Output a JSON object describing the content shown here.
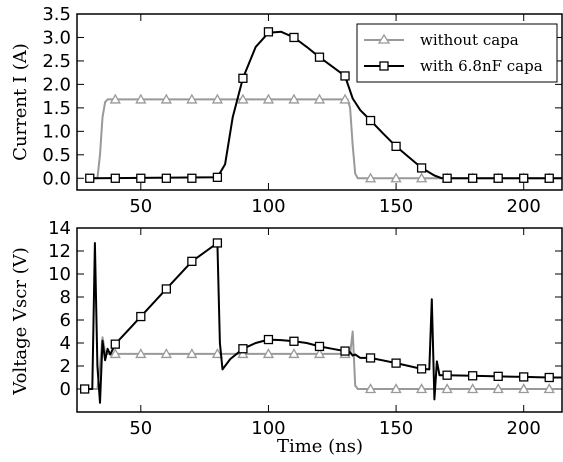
{
  "colors": {
    "without_capa": "#999999",
    "with_capa": "#000000",
    "axes": "#000000",
    "background": "#ffffff"
  },
  "chart_data": [
    {
      "type": "line",
      "ylabel": "Current I (A)",
      "xlim": [
        25,
        215
      ],
      "ylim": [
        -0.25,
        3.5
      ],
      "xticks": [
        50,
        100,
        150,
        200
      ],
      "xtick_labels": [
        "50",
        "100",
        "150",
        "200"
      ],
      "yticks": [
        0.0,
        0.5,
        1.0,
        1.5,
        2.0,
        2.5,
        3.0,
        3.5
      ],
      "ytick_labels": [
        "0.0",
        "0.5",
        "1.0",
        "1.5",
        "2.0",
        "2.5",
        "3.0",
        "3.5"
      ],
      "legend_position": "top-right",
      "series": [
        {
          "name": "without capa",
          "color": "#999999",
          "marker": "triangle",
          "x": [
            30,
            33,
            34,
            35,
            36,
            37,
            38,
            130,
            131,
            132,
            133,
            134,
            135,
            215
          ],
          "y": [
            0,
            0,
            0.5,
            1.3,
            1.62,
            1.68,
            1.68,
            1.68,
            1.68,
            1.5,
            0.7,
            0.1,
            0,
            0
          ],
          "marker_x": [
            40,
            50,
            60,
            70,
            80,
            90,
            100,
            110,
            120,
            130,
            140,
            150,
            160,
            170,
            180,
            190,
            200,
            210
          ],
          "marker_y": [
            1.68,
            1.68,
            1.68,
            1.68,
            1.68,
            1.68,
            1.68,
            1.68,
            1.68,
            1.68,
            0,
            0,
            0,
            0,
            0,
            0,
            0,
            0
          ]
        },
        {
          "name": "with 6.8nF capa",
          "color": "#000000",
          "marker": "square",
          "x": [
            30,
            80,
            83,
            86,
            90,
            95,
            100,
            105,
            110,
            115,
            120,
            125,
            130,
            133,
            136,
            140,
            145,
            150,
            155,
            160,
            165,
            168,
            215
          ],
          "y": [
            0,
            0.02,
            0.3,
            1.3,
            2.13,
            2.8,
            3.1,
            3.12,
            3.0,
            2.8,
            2.58,
            2.38,
            2.18,
            1.7,
            1.45,
            1.23,
            0.95,
            0.68,
            0.45,
            0.22,
            0.06,
            0,
            0
          ],
          "marker_x": [
            30,
            40,
            50,
            60,
            70,
            80,
            90,
            100,
            110,
            120,
            130,
            140,
            150,
            160,
            170,
            180,
            190,
            200,
            210
          ],
          "marker_y": [
            0,
            0,
            0,
            0,
            0,
            0.02,
            2.13,
            3.12,
            3.0,
            2.58,
            2.18,
            1.23,
            0.68,
            0.22,
            0,
            0,
            0,
            0,
            0
          ]
        }
      ]
    },
    {
      "type": "line",
      "xlabel": "Time (ns)",
      "ylabel": "Voltage Vscr (V)",
      "xlim": [
        25,
        215
      ],
      "ylim": [
        -2,
        14
      ],
      "xticks": [
        50,
        100,
        150,
        200
      ],
      "xtick_labels": [
        "50",
        "100",
        "150",
        "200"
      ],
      "yticks": [
        0,
        2,
        4,
        6,
        8,
        10,
        12,
        14
      ],
      "ytick_labels": [
        "0",
        "2",
        "4",
        "6",
        "8",
        "10",
        "12",
        "14"
      ],
      "series": [
        {
          "name": "without capa",
          "color": "#999999",
          "marker": "triangle",
          "x": [
            30,
            33,
            34,
            35,
            36,
            37,
            38,
            132,
            133,
            134,
            135,
            215
          ],
          "y": [
            0,
            0,
            2.0,
            4.5,
            3.2,
            3.05,
            3.05,
            3.05,
            5.0,
            0.3,
            0,
            0
          ],
          "marker_x": [
            40,
            50,
            60,
            70,
            80,
            90,
            100,
            110,
            120,
            130,
            140,
            150,
            160,
            170,
            180,
            190,
            200,
            210
          ],
          "marker_y": [
            3.05,
            3.05,
            3.05,
            3.05,
            3.05,
            3.05,
            3.05,
            3.05,
            3.05,
            3.05,
            0,
            0,
            0,
            0,
            0,
            0,
            0,
            0
          ]
        },
        {
          "name": "with 6.8nF capa",
          "color": "#000000",
          "marker": "square",
          "x": [
            28,
            31,
            32,
            33,
            34,
            35,
            36,
            37,
            38,
            40,
            50,
            60,
            70,
            80,
            81,
            82,
            85,
            90,
            95,
            100,
            105,
            110,
            115,
            120,
            125,
            130,
            132,
            133,
            134,
            136,
            140,
            150,
            160,
            163,
            164,
            165,
            166,
            167,
            170,
            180,
            190,
            200,
            210,
            215
          ],
          "y": [
            0,
            0,
            12.7,
            2.0,
            -1.2,
            4.2,
            2.5,
            3.5,
            3.0,
            3.9,
            6.3,
            8.7,
            11.1,
            12.7,
            4.0,
            1.7,
            2.6,
            3.5,
            4.0,
            4.3,
            4.25,
            4.15,
            4.0,
            3.7,
            3.5,
            3.3,
            3.2,
            2.9,
            3.0,
            2.7,
            2.7,
            2.25,
            1.75,
            1.7,
            7.8,
            -0.9,
            2.4,
            1.2,
            1.2,
            1.15,
            1.1,
            1.05,
            1.0,
            1.0
          ],
          "marker_x": [
            28,
            40,
            50,
            60,
            70,
            80,
            90,
            100,
            110,
            120,
            130,
            140,
            150,
            160,
            170,
            180,
            190,
            200,
            210
          ],
          "marker_y": [
            0,
            3.9,
            6.3,
            8.7,
            11.1,
            12.7,
            3.5,
            4.3,
            4.15,
            3.7,
            3.3,
            2.7,
            2.25,
            1.75,
            1.2,
            1.15,
            1.1,
            1.05,
            1.0
          ]
        }
      ]
    }
  ]
}
